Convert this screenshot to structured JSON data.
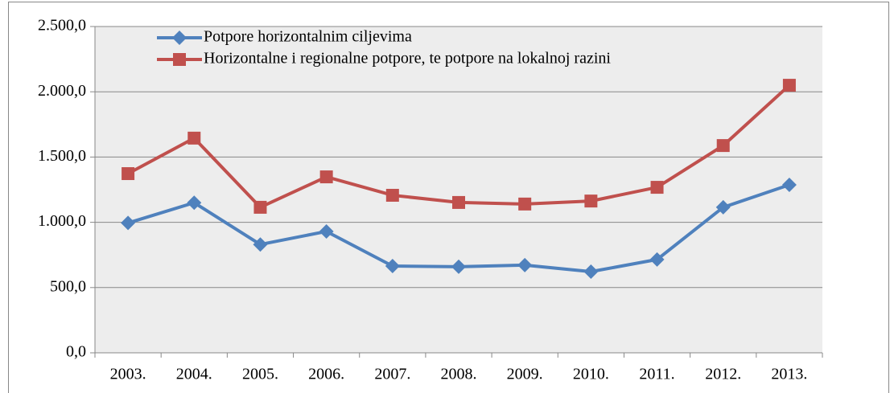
{
  "chart_data": {
    "type": "line",
    "categories": [
      "2003.",
      "2004.",
      "2005.",
      "2006.",
      "2007.",
      "2008.",
      "2009.",
      "2010.",
      "2011.",
      "2012.",
      "2013."
    ],
    "series": [
      {
        "name": "Potpore horizontalnim ciljevima",
        "color": "#4f81bd",
        "marker": "diamond",
        "values": [
          995,
          1150,
          830,
          930,
          665,
          660,
          672,
          622,
          715,
          1115,
          1287
        ]
      },
      {
        "name": "Horizontalne i regionalne potpore, te potpore na lokalnoj razini",
        "color": "#c0504d",
        "marker": "square",
        "values": [
          1373,
          1645,
          1115,
          1348,
          1207,
          1152,
          1140,
          1163,
          1268,
          1588,
          2050
        ]
      }
    ],
    "ylim": [
      0,
      2500
    ],
    "yticks": [
      {
        "value": 0,
        "label": "0,0"
      },
      {
        "value": 500,
        "label": "500,0"
      },
      {
        "value": 1000,
        "label": "1.000,0"
      },
      {
        "value": 1500,
        "label": "1.500,0"
      },
      {
        "value": 2000,
        "label": "2.000,0"
      },
      {
        "value": 2500,
        "label": "2.500,0"
      }
    ],
    "grid": true,
    "legend": "top-left"
  }
}
